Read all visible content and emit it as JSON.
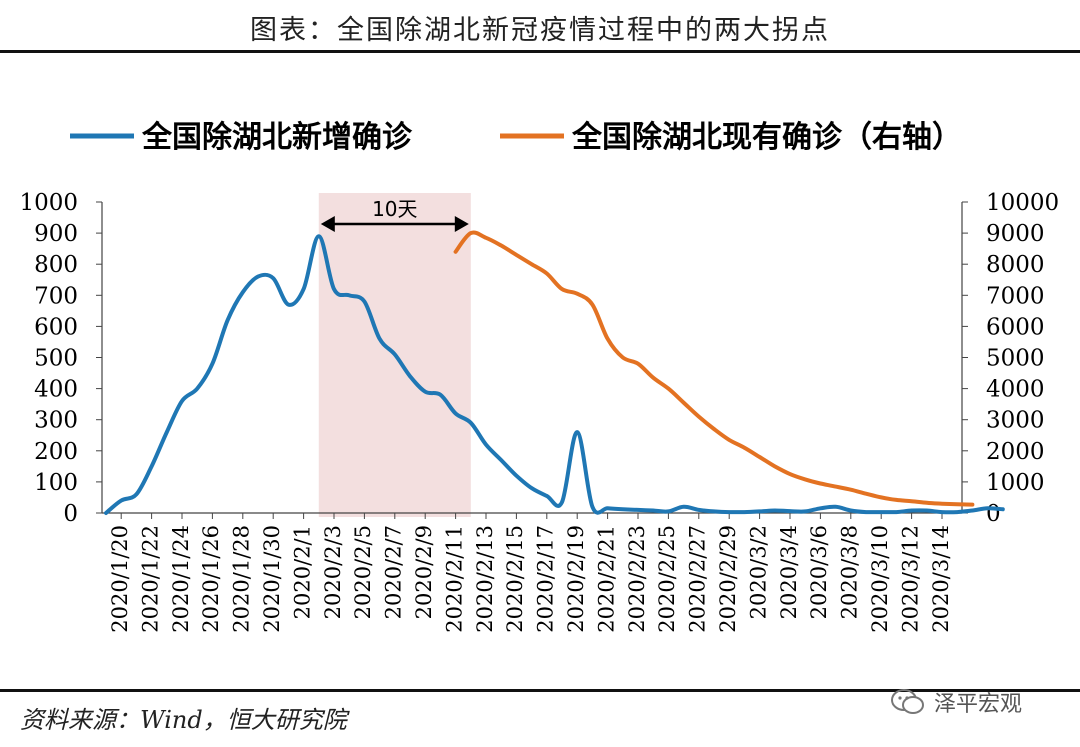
{
  "header": {
    "title": "图表：全国除湖北新冠疫情过程中的两大拐点"
  },
  "footer": {
    "source": "资料来源：Wind，恒大研究院",
    "watermark": "泽平宏观"
  },
  "chart_data": {
    "type": "line",
    "title": "图表：全国除湖北新冠疫情过程中的两大拐点",
    "legend_position": "top",
    "y_left": {
      "min": 0,
      "max": 1000,
      "ticks": [
        0,
        100,
        200,
        300,
        400,
        500,
        600,
        700,
        800,
        900,
        1000
      ]
    },
    "y_right": {
      "min": 0,
      "max": 10000,
      "ticks": [
        0,
        1000,
        2000,
        3000,
        4000,
        5000,
        6000,
        7000,
        8000,
        9000,
        10000
      ]
    },
    "x_tick_labels": [
      "2020/1/20",
      "2020/1/22",
      "2020/1/24",
      "2020/1/26",
      "2020/1/28",
      "2020/1/30",
      "2020/2/1",
      "2020/2/3",
      "2020/2/5",
      "2020/2/7",
      "2020/2/9",
      "2020/2/11",
      "2020/2/13",
      "2020/2/15",
      "2020/2/17",
      "2020/2/19",
      "2020/2/21",
      "2020/2/23",
      "2020/2/25",
      "2020/2/27",
      "2020/2/29",
      "2020/3/2",
      "2020/3/4",
      "2020/3/6",
      "2020/3/8",
      "2020/3/10",
      "2020/3/12",
      "2020/3/14"
    ],
    "highlight": {
      "start_index": 14,
      "end_index": 24,
      "label": "10天",
      "color": "#f2dcdb"
    },
    "series": [
      {
        "name": "全国除湖北新增确诊",
        "axis": "left",
        "color": "#1f77b4",
        "values": [
          0,
          40,
          60,
          150,
          260,
          360,
          400,
          480,
          620,
          710,
          760,
          755,
          670,
          720,
          890,
          720,
          700,
          680,
          560,
          510,
          440,
          390,
          380,
          320,
          290,
          220,
          170,
          120,
          80,
          55,
          35,
          260,
          20,
          15,
          12,
          10,
          8,
          5,
          20,
          10,
          5,
          3,
          3,
          5,
          8,
          6,
          5,
          15,
          20,
          8,
          3,
          3,
          3,
          8,
          8,
          3,
          3,
          8,
          15,
          12
        ]
      },
      {
        "name": "全国除湖北现有确诊（右轴）",
        "axis": "right",
        "color": "#e37222",
        "start_index": 23,
        "values": [
          8400,
          9000,
          8850,
          8600,
          8300,
          8000,
          7700,
          7200,
          7050,
          6700,
          5600,
          5000,
          4800,
          4350,
          4000,
          3550,
          3100,
          2700,
          2350,
          2100,
          1800,
          1500,
          1250,
          1080,
          950,
          850,
          750,
          620,
          500,
          420,
          380,
          330,
          300,
          280,
          270
        ]
      }
    ]
  }
}
